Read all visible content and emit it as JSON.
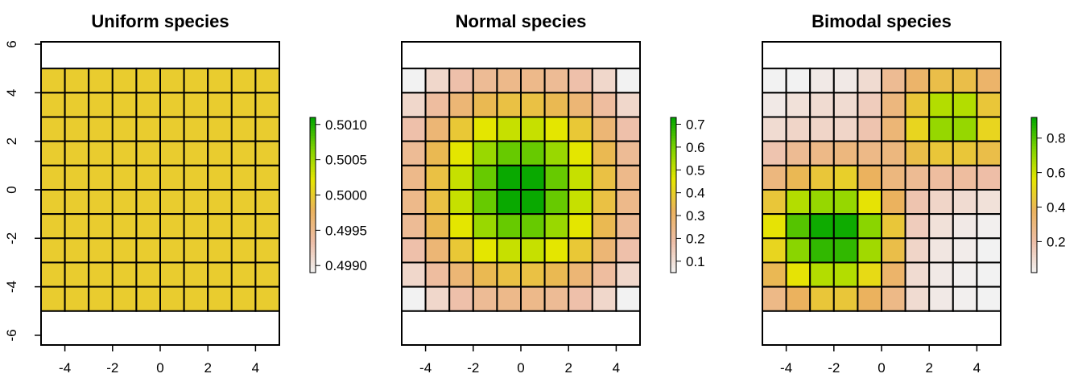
{
  "chart_data": [
    {
      "type": "heatmap",
      "title": "Uniform species",
      "xlabel": "",
      "ylabel": "",
      "xlim": [
        -5,
        5
      ],
      "ylim": [
        -6.4,
        6.1
      ],
      "xticks": [
        "-4",
        "-2",
        "0",
        "2",
        "4"
      ],
      "yticks": [
        "-6",
        "-4",
        "-2",
        "0",
        "2",
        "4",
        "6"
      ],
      "grid_extent": [
        -5,
        5,
        -5,
        5
      ],
      "values": [
        [
          0.5,
          0.5,
          0.5,
          0.5,
          0.5,
          0.5,
          0.5,
          0.5,
          0.5,
          0.5
        ],
        [
          0.5,
          0.5,
          0.5,
          0.5,
          0.5,
          0.5,
          0.5,
          0.5,
          0.5,
          0.5
        ],
        [
          0.5,
          0.5,
          0.5,
          0.5,
          0.5,
          0.5,
          0.5,
          0.5,
          0.5,
          0.5
        ],
        [
          0.5,
          0.5,
          0.5,
          0.5,
          0.5,
          0.5,
          0.5,
          0.5,
          0.5,
          0.5
        ],
        [
          0.5,
          0.5,
          0.5,
          0.5,
          0.5,
          0.5,
          0.5,
          0.5,
          0.5,
          0.5
        ],
        [
          0.5,
          0.5,
          0.5,
          0.5,
          0.5,
          0.5,
          0.5,
          0.5,
          0.5,
          0.5
        ],
        [
          0.5,
          0.5,
          0.5,
          0.5,
          0.5,
          0.5,
          0.5,
          0.5,
          0.5,
          0.5
        ],
        [
          0.5,
          0.5,
          0.5,
          0.5,
          0.5,
          0.5,
          0.5,
          0.5,
          0.5,
          0.5
        ],
        [
          0.5,
          0.5,
          0.5,
          0.5,
          0.5,
          0.5,
          0.5,
          0.5,
          0.5,
          0.5
        ],
        [
          0.5,
          0.5,
          0.5,
          0.5,
          0.5,
          0.5,
          0.5,
          0.5,
          0.5,
          0.5
        ]
      ],
      "legend": {
        "range": [
          0.4989,
          0.5011
        ],
        "ticks": [
          0.499,
          0.4995,
          0.5,
          0.5005,
          0.501
        ],
        "tick_labels": [
          "0.4990",
          "0.4995",
          "0.5000",
          "0.5005",
          "0.5010"
        ]
      }
    },
    {
      "type": "heatmap",
      "title": "Normal species",
      "xlabel": "",
      "ylabel": "",
      "xlim": [
        -5,
        5
      ],
      "ylim": [
        -6.4,
        6.1
      ],
      "xticks": [
        "-4",
        "-2",
        "0",
        "2",
        "4"
      ],
      "yticks": [],
      "grid_extent": [
        -5,
        5,
        -5,
        5
      ],
      "values": [
        [
          0.03,
          0.12,
          0.18,
          0.22,
          0.24,
          0.24,
          0.22,
          0.18,
          0.12,
          0.03
        ],
        [
          0.12,
          0.2,
          0.28,
          0.34,
          0.36,
          0.36,
          0.34,
          0.28,
          0.2,
          0.12
        ],
        [
          0.18,
          0.28,
          0.38,
          0.46,
          0.5,
          0.5,
          0.46,
          0.38,
          0.28,
          0.18
        ],
        [
          0.22,
          0.34,
          0.46,
          0.56,
          0.62,
          0.62,
          0.56,
          0.46,
          0.34,
          0.22
        ],
        [
          0.24,
          0.36,
          0.5,
          0.62,
          0.72,
          0.72,
          0.62,
          0.5,
          0.36,
          0.24
        ],
        [
          0.24,
          0.36,
          0.5,
          0.62,
          0.72,
          0.72,
          0.62,
          0.5,
          0.36,
          0.24
        ],
        [
          0.22,
          0.34,
          0.46,
          0.56,
          0.62,
          0.62,
          0.56,
          0.46,
          0.34,
          0.22
        ],
        [
          0.18,
          0.28,
          0.38,
          0.46,
          0.5,
          0.5,
          0.46,
          0.38,
          0.28,
          0.18
        ],
        [
          0.12,
          0.2,
          0.28,
          0.34,
          0.36,
          0.36,
          0.34,
          0.28,
          0.2,
          0.12
        ],
        [
          0.03,
          0.12,
          0.18,
          0.22,
          0.24,
          0.24,
          0.22,
          0.18,
          0.12,
          0.03
        ]
      ],
      "legend": {
        "range": [
          0.05,
          0.73
        ],
        "ticks": [
          0.1,
          0.2,
          0.3,
          0.4,
          0.5,
          0.6,
          0.7
        ],
        "tick_labels": [
          "0.1",
          "0.2",
          "0.3",
          "0.4",
          "0.5",
          "0.6",
          "0.7"
        ]
      }
    },
    {
      "type": "heatmap",
      "title": "Bimodal species",
      "xlabel": "",
      "ylabel": "",
      "xlim": [
        -5,
        5
      ],
      "ylim": [
        -6.4,
        6.1
      ],
      "xticks": [
        "-4",
        "-2",
        "0",
        "2",
        "4"
      ],
      "yticks": [],
      "grid_extent": [
        -5,
        5,
        -5,
        5
      ],
      "values": [
        [
          0.02,
          0.02,
          0.05,
          0.05,
          0.1,
          0.25,
          0.35,
          0.42,
          0.42,
          0.35
        ],
        [
          0.05,
          0.08,
          0.1,
          0.1,
          0.15,
          0.3,
          0.45,
          0.65,
          0.65,
          0.45
        ],
        [
          0.1,
          0.12,
          0.12,
          0.12,
          0.18,
          0.32,
          0.5,
          0.7,
          0.7,
          0.5
        ],
        [
          0.18,
          0.25,
          0.28,
          0.3,
          0.28,
          0.3,
          0.42,
          0.45,
          0.45,
          0.42
        ],
        [
          0.3,
          0.4,
          0.45,
          0.48,
          0.38,
          0.3,
          0.25,
          0.22,
          0.22,
          0.2
        ],
        [
          0.45,
          0.65,
          0.7,
          0.7,
          0.55,
          0.38,
          0.18,
          0.12,
          0.1,
          0.08
        ],
        [
          0.55,
          0.8,
          0.9,
          0.9,
          0.72,
          0.45,
          0.15,
          0.08,
          0.05,
          0.03
        ],
        [
          0.5,
          0.72,
          0.85,
          0.85,
          0.68,
          0.42,
          0.12,
          0.06,
          0.04,
          0.02
        ],
        [
          0.4,
          0.55,
          0.65,
          0.65,
          0.52,
          0.35,
          0.1,
          0.05,
          0.03,
          0.02
        ],
        [
          0.28,
          0.38,
          0.45,
          0.45,
          0.38,
          0.28,
          0.1,
          0.05,
          0.03,
          0.02
        ]
      ],
      "legend": {
        "range": [
          0.02,
          0.92
        ],
        "ticks": [
          0.2,
          0.4,
          0.6,
          0.8
        ],
        "tick_labels": [
          "0.2",
          "0.4",
          "0.6",
          "0.8"
        ]
      }
    }
  ],
  "colors": {
    "palette_stops": [
      "#F2F2F2",
      "#EEBEA7",
      "#EBB25E",
      "#E6E600",
      "#7FD300",
      "#00A600"
    ],
    "uniform_fill": "#E6E600",
    "frame": "#000000"
  }
}
